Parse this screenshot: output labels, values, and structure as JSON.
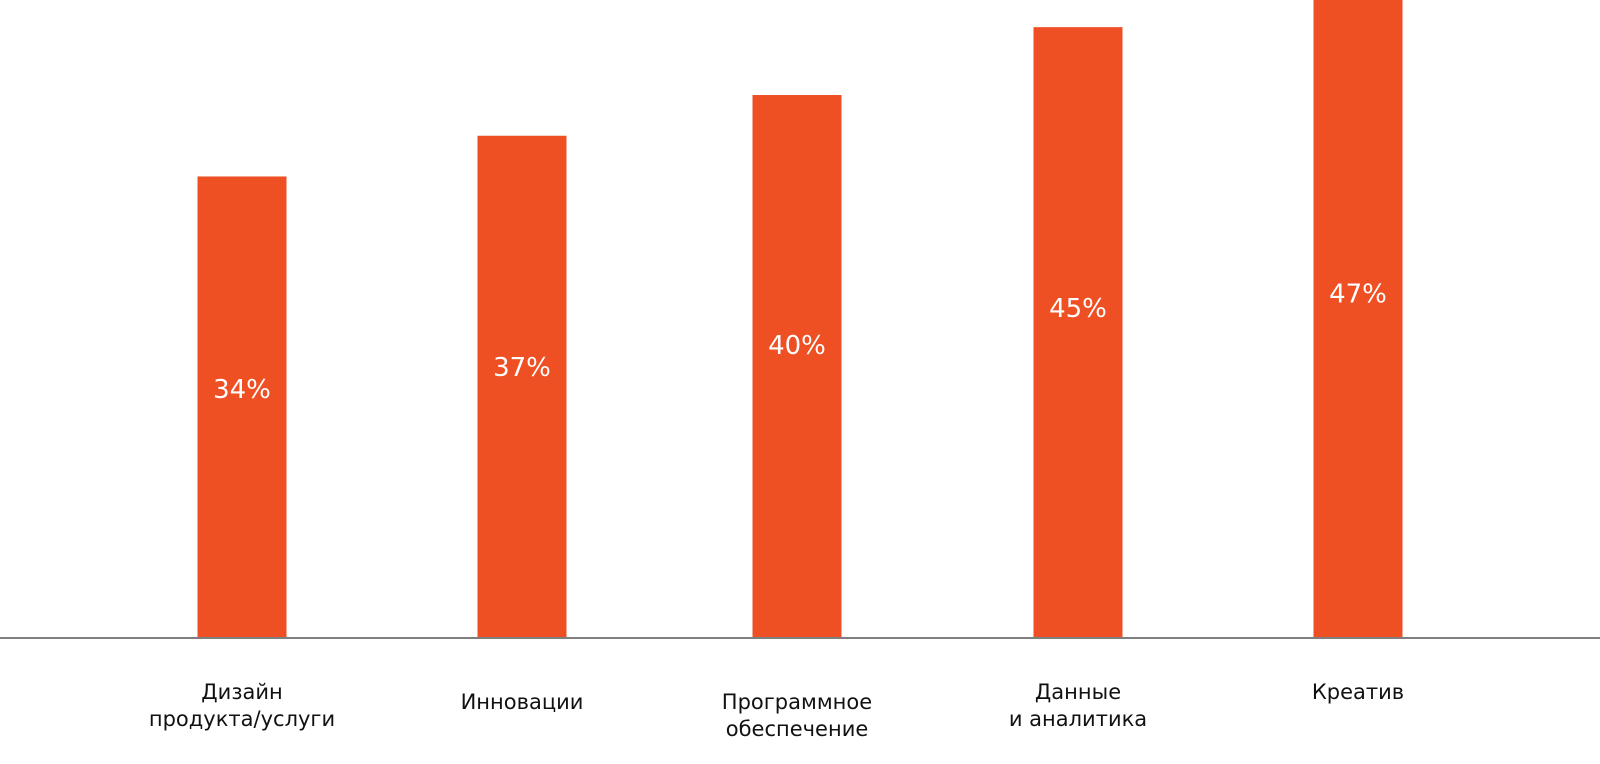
{
  "chart_data": {
    "type": "bar",
    "title": "",
    "xlabel": "",
    "ylabel": "",
    "categories": [
      [
        "Дизайн",
        "продукта/услуги"
      ],
      [
        "Инновации"
      ],
      [
        "Программное",
        "обеспечение"
      ],
      [
        "Данные",
        "и аналитика"
      ],
      [
        "Креатив"
      ]
    ],
    "values": [
      34,
      37,
      40,
      45,
      47
    ],
    "value_labels": [
      "34%",
      "37%",
      "40%",
      "45%",
      "47%"
    ],
    "ylim": [
      0,
      47
    ],
    "grid": false,
    "legend": "none",
    "colors": {
      "bar": "#EE4F23",
      "axis": "#7f7f7f",
      "value_text": "#ffffff",
      "label_text": "#111111"
    }
  }
}
